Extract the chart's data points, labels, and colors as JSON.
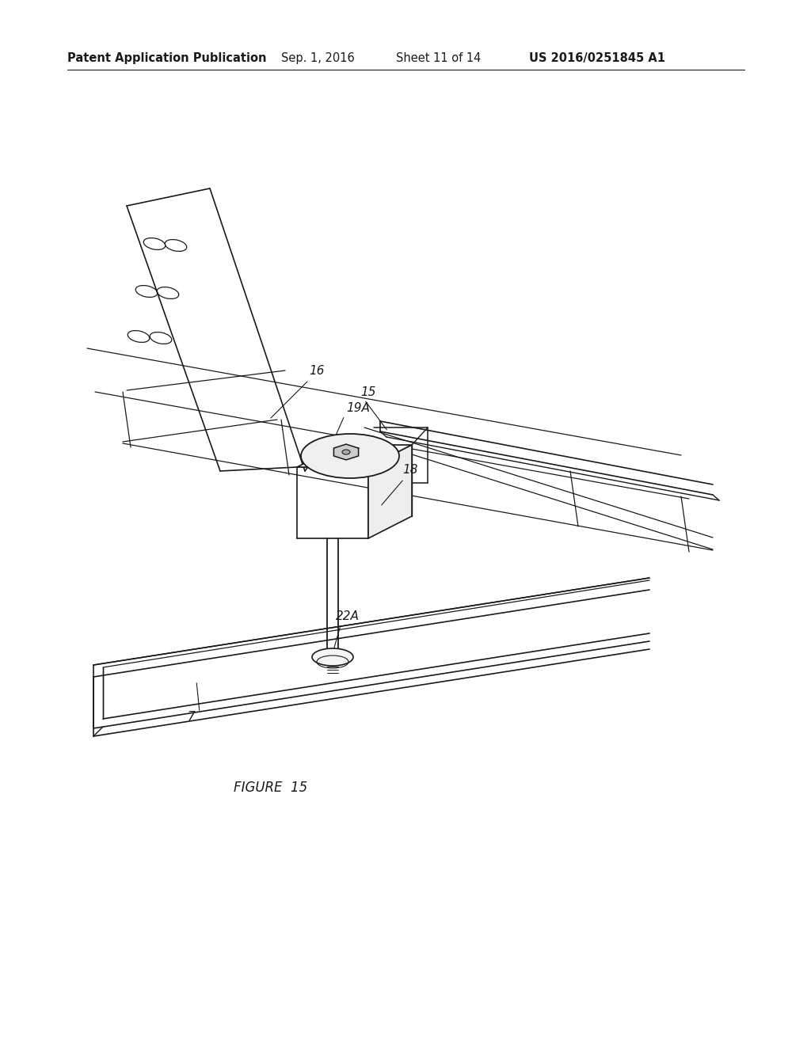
{
  "title": "Patent Application Publication",
  "date": "Sep. 1, 2016",
  "sheet": "Sheet 11 of 14",
  "patent_num": "US 2016/0251845 A1",
  "figure_label": "FIGURE  15",
  "background_color": "#ffffff",
  "line_color": "#1a1a1a",
  "header_fontsize": 10.5,
  "figure_label_fontsize": 12,
  "label_fontsize": 11
}
